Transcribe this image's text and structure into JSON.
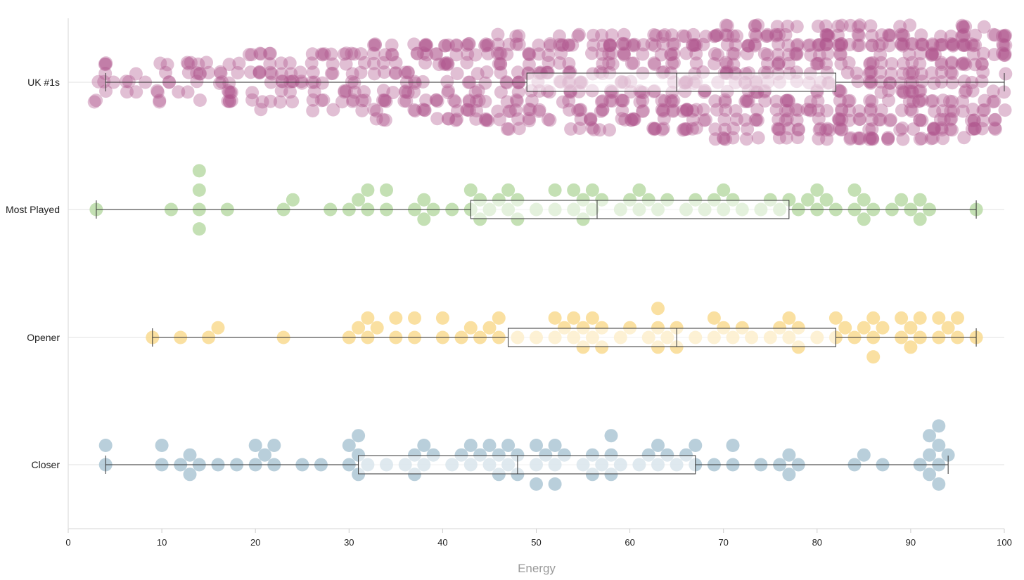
{
  "chart_data": {
    "type": "scatter",
    "subtype": "beeswarm with box plots",
    "xlabel": "Energy",
    "xlim": [
      0,
      100
    ],
    "x_ticks": [
      "0",
      "10",
      "20",
      "30",
      "40",
      "50",
      "60",
      "70",
      "80",
      "90",
      "100"
    ],
    "grid": "horizontal lines at each category",
    "categories": [
      "UK #1s",
      "Most Played",
      "Opener",
      "Closer"
    ],
    "series": [
      {
        "category": "UK #1s",
        "color": "#b0568f",
        "box": {
          "min": 4,
          "q1": 49,
          "median": 65,
          "q3": 82,
          "max": 100
        },
        "values": [
          4,
          9,
          11,
          12,
          13,
          14,
          15,
          16,
          16,
          17,
          18,
          18,
          19,
          20,
          20,
          21,
          21,
          22,
          22,
          23,
          23,
          24,
          25,
          26,
          27,
          27,
          28,
          29,
          29,
          30,
          30,
          31,
          31,
          32,
          32,
          33,
          33,
          34,
          34,
          35,
          35,
          36,
          36,
          37,
          37,
          38,
          38,
          39,
          39,
          40,
          40,
          41,
          41,
          42,
          42,
          43,
          43,
          44,
          44,
          45,
          45,
          46,
          46,
          47,
          47,
          48,
          48,
          49,
          49,
          50,
          50,
          51,
          51,
          52,
          52,
          53,
          53,
          54,
          54,
          55,
          55,
          56,
          56,
          57,
          57,
          58,
          58,
          59,
          59,
          60,
          60,
          61,
          61,
          62,
          62,
          63,
          63,
          64,
          64,
          65,
          65,
          66,
          66,
          67,
          67,
          68,
          68,
          69,
          69,
          70,
          70,
          71,
          71,
          72,
          72,
          73,
          73,
          74,
          74,
          75,
          75,
          76,
          76,
          77,
          77,
          78,
          78,
          79,
          79,
          80,
          80,
          81,
          81,
          82,
          82,
          83,
          83,
          84,
          84,
          85,
          85,
          86,
          86,
          87,
          87,
          88,
          88,
          89,
          89,
          90,
          90,
          91,
          91,
          92,
          92,
          93,
          93,
          94,
          94,
          95,
          95,
          96,
          96,
          97,
          98,
          99,
          100
        ],
        "density": [
          3,
          2,
          3,
          4,
          5,
          6,
          5,
          6,
          7,
          8,
          9,
          9,
          10,
          11,
          10,
          11,
          12,
          12,
          13,
          13,
          14,
          14,
          15,
          14,
          15,
          16,
          17,
          16,
          15,
          12
        ]
      },
      {
        "category": "Most Played",
        "color": "#b7d9a4",
        "box": {
          "min": 3,
          "q1": 43,
          "median": 56.5,
          "q3": 77,
          "max": 97
        },
        "values": [
          3,
          11,
          14,
          14,
          14,
          14,
          17,
          23,
          24,
          28,
          30,
          31,
          32,
          32,
          34,
          34,
          37,
          38,
          38,
          39,
          41,
          43,
          43,
          44,
          44,
          45,
          46,
          47,
          47,
          48,
          48,
          50,
          52,
          52,
          54,
          54,
          55,
          55,
          56,
          56,
          57,
          59,
          60,
          61,
          61,
          62,
          63,
          64,
          66,
          67,
          68,
          69,
          70,
          70,
          71,
          72,
          74,
          75,
          76,
          77,
          78,
          79,
          80,
          80,
          81,
          82,
          84,
          84,
          85,
          85,
          86,
          88,
          89,
          90,
          91,
          91,
          92,
          97
        ]
      },
      {
        "category": "Opener",
        "color": "#f9d98c",
        "box": {
          "min": 9,
          "q1": 47,
          "median": 65,
          "q3": 82,
          "max": 97
        },
        "values": [
          9,
          12,
          15,
          16,
          23,
          30,
          31,
          32,
          32,
          33,
          35,
          35,
          37,
          37,
          40,
          40,
          42,
          43,
          44,
          45,
          46,
          46,
          48,
          50,
          52,
          52,
          53,
          54,
          54,
          55,
          55,
          56,
          56,
          57,
          57,
          59,
          60,
          62,
          63,
          63,
          63,
          64,
          65,
          65,
          67,
          69,
          69,
          70,
          71,
          72,
          73,
          75,
          76,
          77,
          77,
          78,
          78,
          80,
          82,
          82,
          83,
          84,
          85,
          86,
          86,
          86,
          87,
          89,
          89,
          90,
          90,
          91,
          91,
          93,
          93,
          94,
          95,
          95,
          97
        ]
      },
      {
        "category": "Closer",
        "color": "#a9c4d3",
        "box": {
          "min": 4,
          "q1": 31,
          "median": 48,
          "q3": 67,
          "max": 94
        },
        "values": [
          4,
          4,
          10,
          10,
          12,
          13,
          13,
          14,
          16,
          18,
          20,
          20,
          21,
          22,
          22,
          25,
          27,
          30,
          30,
          31,
          31,
          31,
          32,
          34,
          36,
          37,
          37,
          38,
          38,
          39,
          41,
          42,
          43,
          43,
          44,
          45,
          45,
          46,
          46,
          47,
          47,
          48,
          48,
          50,
          50,
          50,
          51,
          52,
          52,
          52,
          53,
          55,
          56,
          56,
          57,
          58,
          58,
          58,
          59,
          61,
          62,
          63,
          63,
          64,
          65,
          66,
          67,
          67,
          69,
          71,
          71,
          74,
          76,
          77,
          77,
          78,
          84,
          85,
          87,
          91,
          92,
          92,
          92,
          93,
          93,
          93,
          93,
          94
        ]
      }
    ]
  }
}
